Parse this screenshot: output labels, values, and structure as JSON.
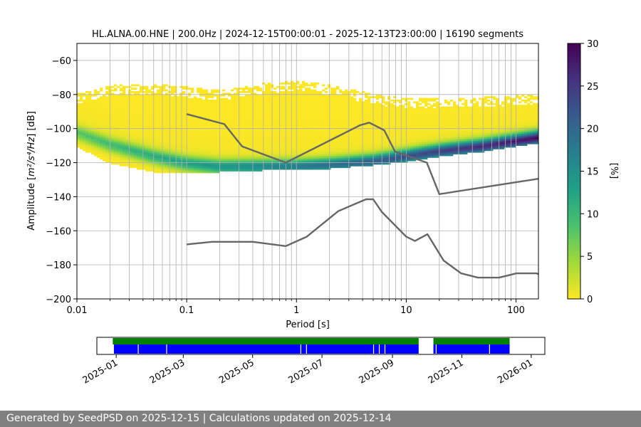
{
  "footer_text": "Generated by SeedPSD on 2025-12-15 | Calculations updated on 2025-12-14",
  "colormap": [
    "#fde725",
    "#a0da39",
    "#4ac16d",
    "#1fa187",
    "#277f8e",
    "#365c8d",
    "#46327e",
    "#440154"
  ],
  "chart_data": [
    {
      "type": "heatmap",
      "title": "HL.ALNA.00.HNE | 200.0Hz | 2024-12-15T00:00:01 - 2025-12-13T23:00:00 | 16190 segments",
      "xlabel": "Period [s]",
      "ylabel_prefix": "Amplitude [",
      "ylabel_units": "m²/s⁴/Hz",
      "ylabel_suffix": "] [dB]",
      "xscale": "log",
      "xlim": [
        0.01,
        160
      ],
      "ylim": [
        -200,
        -50
      ],
      "xticks": [
        0.01,
        0.1,
        1,
        10,
        100
      ],
      "xtick_labels": [
        "0.01",
        "0.1",
        "1",
        "10",
        "100"
      ],
      "yticks": [
        -200,
        -180,
        -160,
        -140,
        -120,
        -100,
        -80,
        -60
      ],
      "ytick_labels": [
        "−200",
        "−180",
        "−160",
        "−140",
        "−120",
        "−100",
        "−80",
        "−60"
      ],
      "grid": true,
      "colorbar": {
        "label": "[%]",
        "range": [
          0,
          30
        ],
        "ticks": [
          0,
          5,
          10,
          15,
          20,
          25,
          30
        ],
        "tick_labels": [
          "0",
          "5",
          "10",
          "15",
          "20",
          "25",
          "30"
        ],
        "colormap": "viridis_r"
      },
      "density_envelope": {
        "period": [
          0.01,
          0.02,
          0.05,
          0.1,
          0.2,
          0.5,
          1,
          2,
          5,
          10,
          20,
          50,
          100,
          160
        ],
        "upper_db": [
          -80,
          -75,
          -74,
          -76,
          -78,
          -74,
          -72,
          -75,
          -80,
          -83,
          -82,
          -82,
          -81,
          -80
        ],
        "lower_db": [
          -110,
          -120,
          -125,
          -126,
          -125,
          -124,
          -124,
          -123,
          -121,
          -119,
          -116,
          -113,
          -110,
          -108
        ],
        "mode_db": [
          -103,
          -110,
          -117,
          -121,
          -123,
          -123,
          -123,
          -122,
          -120,
          -117,
          -114,
          -111,
          -108,
          -106
        ]
      },
      "noise_models": [
        {
          "period": [
            0.1,
            0.17,
            0.4,
            0.8,
            1.24,
            2.4,
            4.3,
            5.0,
            6.0,
            10.0,
            12.0,
            15.6,
            21.9,
            31.6,
            45.0,
            70.0,
            101.0,
            154.0,
            160.0
          ],
          "db": [
            -168,
            -166.5,
            -166.5,
            -169,
            -163.5,
            -148.5,
            -141.5,
            -141.5,
            -149,
            -163.5,
            -166,
            -162,
            -177.5,
            -185,
            -187.5,
            -187.5,
            -185,
            -185,
            -185.5
          ]
        },
        {
          "period": [
            0.1,
            0.22,
            0.32,
            0.8,
            3.8,
            4.6,
            6.3,
            7.9,
            15.4,
            20.0,
            354.8
          ],
          "db": [
            -91.5,
            -97.4,
            -110.5,
            -120,
            -98,
            -96.5,
            -101,
            -113.5,
            -120,
            -138.5,
            -126
          ]
        }
      ]
    },
    {
      "type": "timeline",
      "xlim": [
        "2024-12-15",
        "2026-01-13"
      ],
      "xtick_labels": [
        "2025-01",
        "2025-03",
        "2025-05",
        "2025-07",
        "2025-09",
        "2025-11",
        "2026-01"
      ],
      "xtick_dates": [
        "2025-01-01",
        "2025-03-01",
        "2025-05-01",
        "2025-07-01",
        "2025-09-01",
        "2025-11-01",
        "2026-01-01"
      ],
      "series": [
        {
          "color": "#008000",
          "spans": [
            [
              "2024-12-29",
              "2025-09-24"
            ],
            [
              "2025-10-07",
              "2025-12-13"
            ]
          ]
        },
        {
          "color": "#0000ff",
          "spans": [
            [
              "2024-12-30",
              "2025-09-24"
            ],
            [
              "2025-10-07",
              "2025-12-13"
            ]
          ],
          "gaps": [
            "2025-01-20",
            "2025-02-14",
            "2025-06-12",
            "2025-06-17",
            "2025-08-15",
            "2025-08-20",
            "2025-08-25",
            "2025-09-25",
            "2025-10-09",
            "2025-11-25"
          ]
        }
      ]
    }
  ]
}
